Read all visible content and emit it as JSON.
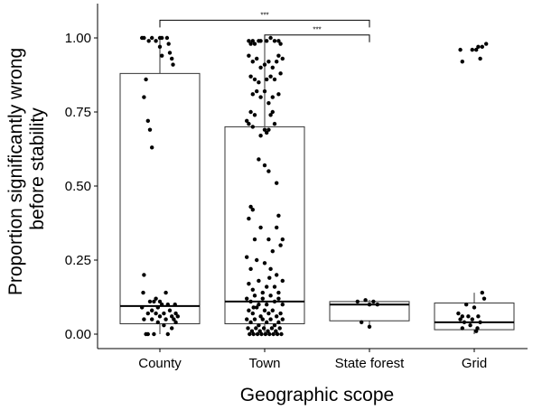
{
  "chart_data": {
    "type": "boxplot-jitter",
    "xlabel": "Geographic scope",
    "ylabel_lines": [
      "Proportion significantly wrong",
      "before stability"
    ],
    "ylim": [
      -0.045,
      1.12
    ],
    "yticks": [
      0.0,
      0.25,
      0.5,
      0.75,
      1.0
    ],
    "ytick_labels": [
      "0.00",
      "0.25",
      "0.50",
      "0.75",
      "1.00"
    ],
    "categories": [
      "County",
      "Town",
      "State forest",
      "Grid"
    ],
    "boxes": [
      {
        "name": "County",
        "q1": 0.035,
        "median": 0.095,
        "q3": 0.88,
        "whisker_low": 0.0,
        "whisker_high": 1.0
      },
      {
        "name": "Town",
        "q1": 0.035,
        "median": 0.11,
        "q3": 0.7,
        "whisker_low": 0.0,
        "whisker_high": 1.0
      },
      {
        "name": "State forest",
        "q1": 0.045,
        "median": 0.1,
        "q3": 0.11,
        "whisker_low": 0.02,
        "whisker_high": 0.115
      },
      {
        "name": "Grid",
        "q1": 0.015,
        "median": 0.04,
        "q3": 0.105,
        "whisker_low": 0.0,
        "whisker_high": 0.14
      }
    ],
    "points": {
      "County": [
        [
          -0.45,
          1.0
        ],
        [
          -0.4,
          1.0
        ],
        [
          -0.28,
          0.99
        ],
        [
          -0.2,
          1.0
        ],
        [
          -0.1,
          0.99
        ],
        [
          0.0,
          1.0
        ],
        [
          0.05,
          1.0
        ],
        [
          0.18,
          1.0
        ],
        [
          0.22,
          0.98
        ],
        [
          0.25,
          0.95
        ],
        [
          0.3,
          0.93
        ],
        [
          0.33,
          0.91
        ],
        [
          0.0,
          0.97
        ],
        [
          0.05,
          0.94
        ],
        [
          -0.35,
          0.86
        ],
        [
          -0.4,
          0.8
        ],
        [
          -0.3,
          0.72
        ],
        [
          -0.25,
          0.69
        ],
        [
          -0.2,
          0.63
        ],
        [
          -0.4,
          0.2
        ],
        [
          -0.42,
          0.14
        ],
        [
          -0.45,
          0.09
        ],
        [
          -0.4,
          0.05
        ],
        [
          -0.3,
          0.07
        ],
        [
          -0.25,
          0.11
        ],
        [
          -0.2,
          0.08
        ],
        [
          -0.15,
          0.11
        ],
        [
          -0.1,
          0.07
        ],
        [
          -0.05,
          0.09
        ],
        [
          0.0,
          0.06
        ],
        [
          0.05,
          0.1
        ],
        [
          0.1,
          0.07
        ],
        [
          0.15,
          0.14
        ],
        [
          0.2,
          0.1
        ],
        [
          0.25,
          0.08
        ],
        [
          0.3,
          0.06
        ],
        [
          0.35,
          0.05
        ],
        [
          0.4,
          0.07
        ],
        [
          0.45,
          0.06
        ],
        [
          -0.35,
          0.0
        ],
        [
          -0.3,
          0.0
        ],
        [
          -0.15,
          0.0
        ],
        [
          -0.05,
          0.04
        ],
        [
          0.1,
          0.03
        ],
        [
          0.2,
          0.0
        ],
        [
          0.3,
          0.02
        ],
        [
          0.4,
          0.04
        ],
        [
          -0.1,
          0.12
        ],
        [
          0.0,
          0.11
        ],
        [
          -0.2,
          0.05
        ],
        [
          0.15,
          0.05
        ],
        [
          0.38,
          0.1
        ]
      ],
      "Town": [
        [
          -0.4,
          0.99
        ],
        [
          -0.35,
          0.98
        ],
        [
          -0.3,
          0.99
        ],
        [
          -0.25,
          0.98
        ],
        [
          -0.15,
          0.99
        ],
        [
          -0.1,
          0.99
        ],
        [
          0.05,
          0.99
        ],
        [
          0.15,
          1.0
        ],
        [
          0.25,
          0.99
        ],
        [
          0.35,
          0.99
        ],
        [
          0.4,
          0.98
        ],
        [
          -0.4,
          0.94
        ],
        [
          -0.3,
          0.92
        ],
        [
          -0.2,
          0.93
        ],
        [
          -0.1,
          0.9
        ],
        [
          0.0,
          0.91
        ],
        [
          0.1,
          0.92
        ],
        [
          0.2,
          0.9
        ],
        [
          0.3,
          0.92
        ],
        [
          0.35,
          0.94
        ],
        [
          0.45,
          0.93
        ],
        [
          -0.35,
          0.87
        ],
        [
          -0.25,
          0.86
        ],
        [
          -0.15,
          0.85
        ],
        [
          0.05,
          0.86
        ],
        [
          0.15,
          0.87
        ],
        [
          0.25,
          0.86
        ],
        [
          0.4,
          0.88
        ],
        [
          -0.3,
          0.81
        ],
        [
          -0.2,
          0.82
        ],
        [
          -0.1,
          0.8
        ],
        [
          0.0,
          0.82
        ],
        [
          0.1,
          0.78
        ],
        [
          0.2,
          0.8
        ],
        [
          0.35,
          0.81
        ],
        [
          -0.35,
          0.75
        ],
        [
          -0.25,
          0.74
        ],
        [
          0.15,
          0.74
        ],
        [
          0.2,
          0.75
        ],
        [
          -0.45,
          0.72
        ],
        [
          -0.4,
          0.71
        ],
        [
          -0.3,
          0.7
        ],
        [
          0.0,
          0.69
        ],
        [
          0.05,
          0.68
        ],
        [
          0.1,
          0.69
        ],
        [
          0.25,
          0.71
        ],
        [
          -0.1,
          0.67
        ],
        [
          0.0,
          0.57
        ],
        [
          0.1,
          0.55
        ],
        [
          0.3,
          0.51
        ],
        [
          -0.15,
          0.59
        ],
        [
          -0.35,
          0.43
        ],
        [
          -0.4,
          0.39
        ],
        [
          -0.3,
          0.42
        ],
        [
          0.35,
          0.4
        ],
        [
          0.3,
          0.36
        ],
        [
          0.45,
          0.32
        ],
        [
          -0.25,
          0.32
        ],
        [
          -0.1,
          0.36
        ],
        [
          0.1,
          0.32
        ],
        [
          0.2,
          0.28
        ],
        [
          0.4,
          0.3
        ],
        [
          -0.45,
          0.26
        ],
        [
          -0.35,
          0.22
        ],
        [
          -0.2,
          0.25
        ],
        [
          0.0,
          0.24
        ],
        [
          0.15,
          0.22
        ],
        [
          0.3,
          0.2
        ],
        [
          0.45,
          0.18
        ],
        [
          -0.4,
          0.17
        ],
        [
          -0.3,
          0.15
        ],
        [
          -0.15,
          0.18
        ],
        [
          0.05,
          0.16
        ],
        [
          0.25,
          0.16
        ],
        [
          0.35,
          0.14
        ],
        [
          -0.45,
          0.12
        ],
        [
          -0.35,
          0.11
        ],
        [
          -0.25,
          0.13
        ],
        [
          -0.15,
          0.1
        ],
        [
          -0.05,
          0.12
        ],
        [
          0.05,
          0.1
        ],
        [
          0.15,
          0.13
        ],
        [
          0.25,
          0.11
        ],
        [
          0.35,
          0.12
        ],
        [
          0.45,
          0.1
        ],
        [
          -0.4,
          0.08
        ],
        [
          -0.3,
          0.07
        ],
        [
          -0.2,
          0.09
        ],
        [
          -0.1,
          0.06
        ],
        [
          0.0,
          0.08
        ],
        [
          0.1,
          0.07
        ],
        [
          0.2,
          0.08
        ],
        [
          0.3,
          0.06
        ],
        [
          0.4,
          0.07
        ],
        [
          -0.45,
          0.05
        ],
        [
          -0.35,
          0.04
        ],
        [
          -0.25,
          0.05
        ],
        [
          -0.15,
          0.03
        ],
        [
          -0.05,
          0.05
        ],
        [
          0.05,
          0.04
        ],
        [
          0.15,
          0.05
        ],
        [
          0.25,
          0.03
        ],
        [
          0.35,
          0.04
        ],
        [
          0.45,
          0.05
        ],
        [
          -0.42,
          0.02
        ],
        [
          -0.32,
          0.01
        ],
        [
          -0.22,
          0.02
        ],
        [
          -0.12,
          0.01
        ],
        [
          -0.02,
          0.02
        ],
        [
          0.08,
          0.01
        ],
        [
          0.18,
          0.02
        ],
        [
          0.28,
          0.01
        ],
        [
          0.38,
          0.02
        ],
        [
          -0.38,
          0.0
        ],
        [
          -0.28,
          0.0
        ],
        [
          -0.18,
          0.0
        ],
        [
          -0.08,
          0.0
        ],
        [
          0.02,
          0.0
        ],
        [
          0.12,
          0.0
        ],
        [
          0.22,
          0.0
        ],
        [
          0.32,
          0.0
        ],
        [
          0.42,
          0.0
        ],
        [
          -0.05,
          0.14
        ],
        [
          0.12,
          0.19
        ],
        [
          -0.28,
          0.09
        ]
      ],
      "State forest": [
        [
          -0.3,
          0.11
        ],
        [
          -0.1,
          0.115
        ],
        [
          0.0,
          0.1
        ],
        [
          0.1,
          0.11
        ],
        [
          0.2,
          0.1
        ],
        [
          -0.2,
          0.04
        ],
        [
          0.0,
          0.025
        ]
      ],
      "Grid": [
        [
          -0.35,
          0.96
        ],
        [
          -0.3,
          0.92
        ],
        [
          -0.05,
          0.96
        ],
        [
          0.05,
          0.96
        ],
        [
          0.1,
          0.97
        ],
        [
          0.15,
          0.93
        ],
        [
          0.2,
          0.97
        ],
        [
          0.3,
          0.98
        ],
        [
          -0.4,
          0.07
        ],
        [
          -0.35,
          0.05
        ],
        [
          -0.3,
          0.02
        ],
        [
          -0.25,
          0.04
        ],
        [
          -0.2,
          0.1
        ],
        [
          -0.15,
          0.06
        ],
        [
          -0.1,
          0.03
        ],
        [
          -0.05,
          0.05
        ],
        [
          0.0,
          0.09
        ],
        [
          0.05,
          0.01
        ],
        [
          0.1,
          0.06
        ],
        [
          0.15,
          0.04
        ],
        [
          0.2,
          0.14
        ],
        [
          0.25,
          0.12
        ],
        [
          -0.3,
          0.06
        ],
        [
          0.08,
          0.02
        ]
      ]
    },
    "significance": [
      {
        "from": "County",
        "to": "State forest",
        "y": 1.06,
        "label": "***"
      },
      {
        "from": "Town",
        "to": "State forest",
        "y": 1.01,
        "label": "***"
      }
    ]
  }
}
